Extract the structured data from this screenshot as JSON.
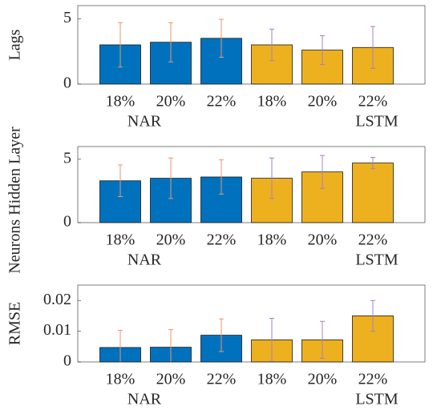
{
  "chart_data": [
    {
      "type": "bar",
      "ylabel": "Lags",
      "categories": [
        "18%",
        "20%",
        "22%",
        "18%",
        "20%",
        "22%"
      ],
      "groups": [
        "NAR",
        "LSTM"
      ],
      "values": [
        3.0,
        3.2,
        3.5,
        3.0,
        2.6,
        2.8
      ],
      "errors": [
        1.7,
        1.5,
        1.45,
        1.2,
        1.1,
        1.6
      ],
      "colors": [
        "#0072bd",
        "#0072bd",
        "#0072bd",
        "#edb120",
        "#edb120",
        "#edb120"
      ],
      "error_colors": [
        "#e8956f",
        "#e8956f",
        "#e8956f",
        "#a77fc4",
        "#a77fc4",
        "#a77fc4"
      ],
      "ylim": [
        0,
        6
      ],
      "yticks": [
        0,
        5
      ]
    },
    {
      "type": "bar",
      "ylabel": "Neurons Hidden Layer",
      "categories": [
        "18%",
        "20%",
        "22%",
        "18%",
        "20%",
        "22%"
      ],
      "groups": [
        "NAR",
        "LSTM"
      ],
      "values": [
        3.3,
        3.5,
        3.6,
        3.5,
        4.0,
        4.7
      ],
      "errors": [
        1.25,
        1.6,
        1.35,
        1.6,
        1.3,
        0.45
      ],
      "colors": [
        "#0072bd",
        "#0072bd",
        "#0072bd",
        "#edb120",
        "#edb120",
        "#edb120"
      ],
      "error_colors": [
        "#e8956f",
        "#e8956f",
        "#e8956f",
        "#a77fc4",
        "#a77fc4",
        "#a77fc4"
      ],
      "ylim": [
        0,
        6
      ],
      "yticks": [
        0,
        5
      ]
    },
    {
      "type": "bar",
      "ylabel": "RMSE",
      "categories": [
        "18%",
        "20%",
        "22%",
        "18%",
        "20%",
        "22%"
      ],
      "groups": [
        "NAR",
        "LSTM"
      ],
      "values": [
        0.0047,
        0.0048,
        0.0087,
        0.0072,
        0.0072,
        0.015
      ],
      "errors": [
        0.0056,
        0.0057,
        0.0053,
        0.007,
        0.006,
        0.005
      ],
      "colors": [
        "#0072bd",
        "#0072bd",
        "#0072bd",
        "#edb120",
        "#edb120",
        "#edb120"
      ],
      "error_colors": [
        "#e8956f",
        "#e8956f",
        "#e8956f",
        "#a77fc4",
        "#a77fc4",
        "#a77fc4"
      ],
      "ylim": [
        0,
        0.025
      ],
      "yticks": [
        0,
        0.01,
        0.02
      ]
    }
  ]
}
